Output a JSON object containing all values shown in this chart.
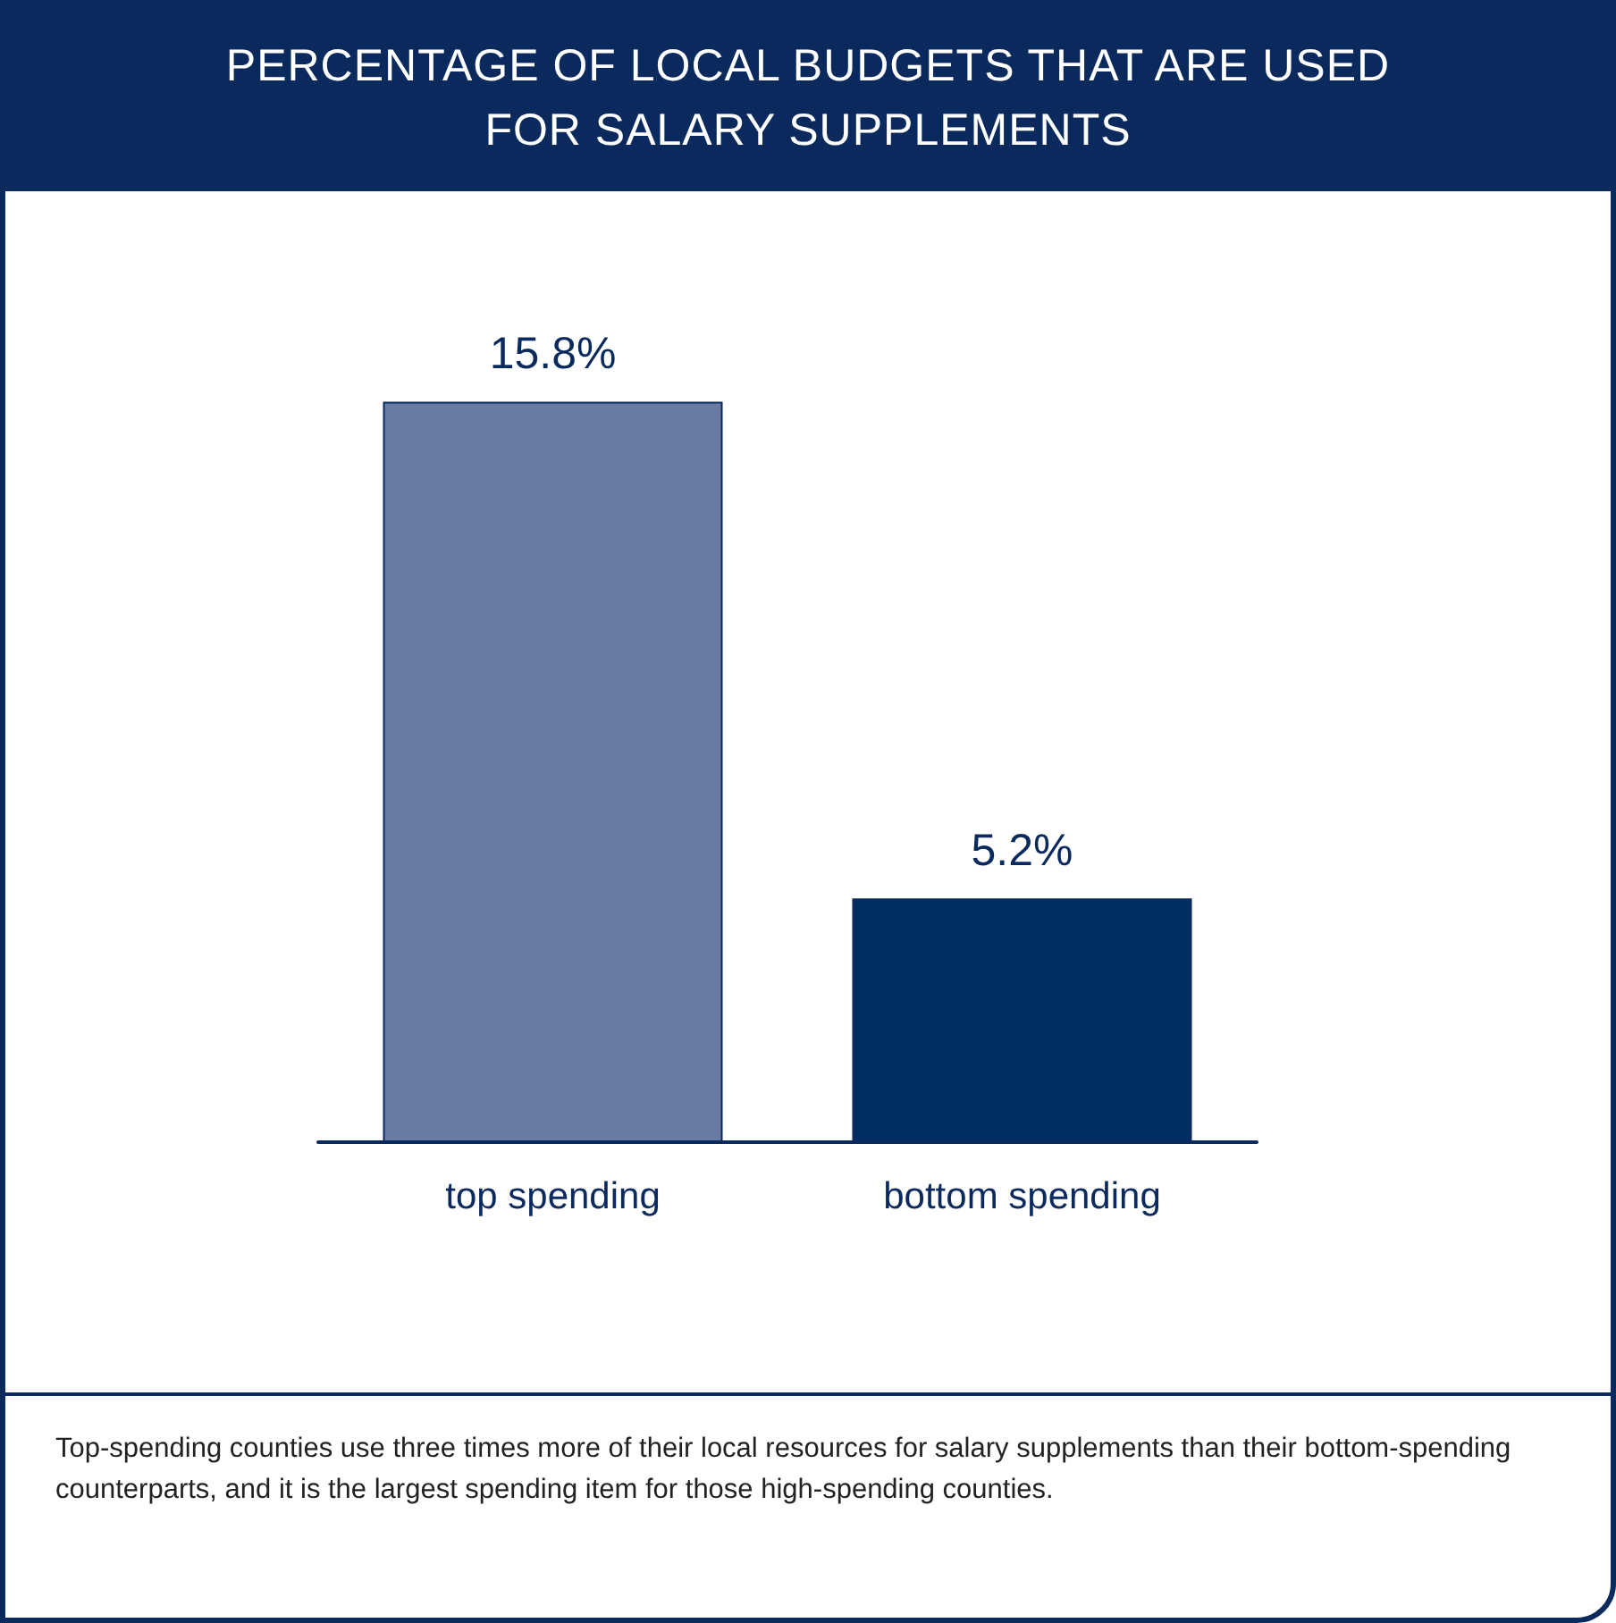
{
  "chart_data": {
    "type": "bar",
    "title": "PERCENTAGE OF LOCAL BUDGETS THAT ARE USED FOR SALARY SUPPLEMENTS",
    "categories": [
      "top spending",
      "bottom spending"
    ],
    "values": [
      15.8,
      5.2
    ],
    "colors": [
      "#6a7ba4",
      "#002d62"
    ],
    "value_labels": [
      "15.8%",
      "5.2%"
    ],
    "annotations": [
      "Top-spending counties use three times more of their local resources for salary supplements than their bottom-spending counterparts, and it is the largest spending item for those high-spending counties."
    ]
  }
}
